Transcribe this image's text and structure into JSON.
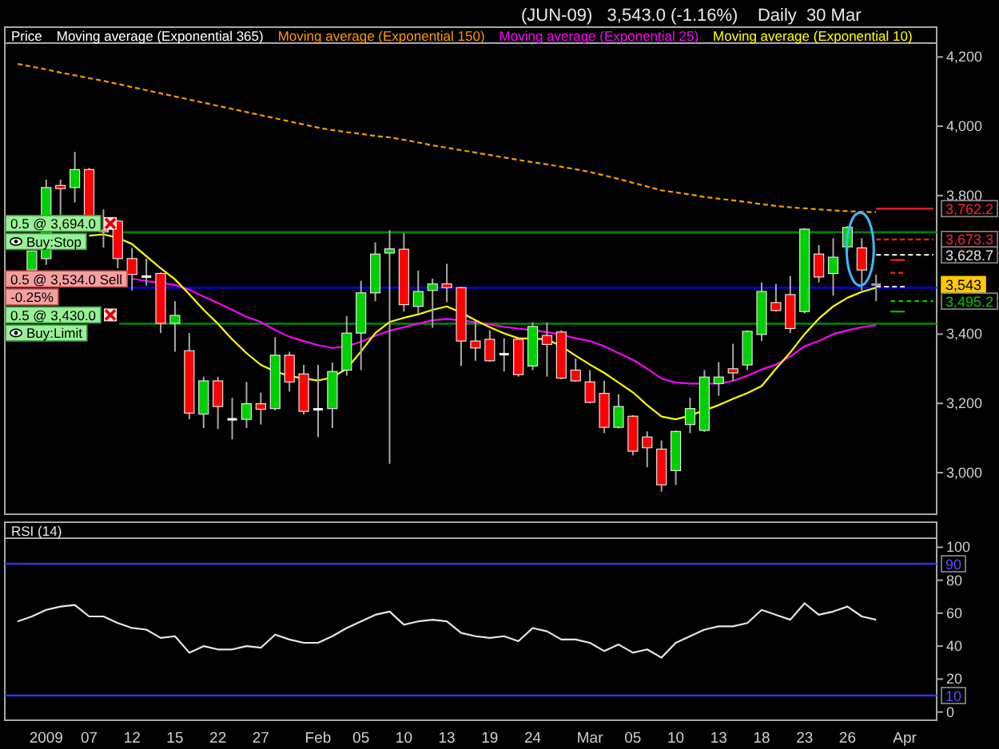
{
  "chart_data": [
    {
      "type": "candlestick",
      "title": "(JUN-09)   3,543.0 (-1.16%)    Daily  30 Mar",
      "legend": "top left",
      "categories": [
        null,
        null,
        null,
        null,
        null,
        null,
        null,
        null,
        null,
        null,
        null,
        null,
        null,
        null,
        null,
        null,
        null,
        null,
        null,
        null,
        null,
        null,
        null,
        null,
        null,
        null,
        null,
        null,
        null,
        null,
        null,
        null,
        null,
        null,
        null,
        null,
        null,
        null,
        null,
        null,
        null,
        null,
        null,
        null,
        null,
        null,
        null,
        null,
        null,
        null,
        null,
        null,
        null,
        null,
        null,
        null,
        null,
        null,
        null,
        null,
        null,
        null,
        null,
        null,
        null
      ],
      "ylim": [
        2880,
        4240
      ],
      "yticks": [
        {
          "value": 3000,
          "label": "3,000"
        },
        {
          "value": 3200,
          "label": "3,200"
        },
        {
          "value": 3400,
          "label": "3,400"
        },
        {
          "value": 3800,
          "label": "3,800"
        },
        {
          "value": 4000,
          "label": "4,000"
        },
        {
          "value": 4200,
          "label": "4,200"
        }
      ],
      "series": [
        {
          "type": "candlestick",
          "name": "Price",
          "ohlc": [
            null,
            [
              3585,
              3640,
              3585,
              3640
            ],
            [
              3618,
              3846,
              3600,
              3823
            ],
            [
              3829,
              3846,
              3740,
              3820
            ],
            [
              3823,
              3926,
              3780,
              3875
            ],
            [
              3875,
              3880,
              3700,
              3742
            ],
            [
              3700,
              3760,
              3650,
              3695
            ],
            [
              3726,
              3730,
              3590,
              3618
            ],
            [
              3618,
              3649,
              3526,
              3572
            ],
            [
              3566,
              3618,
              3540,
              3566
            ],
            [
              3575,
              3578,
              3403,
              3431
            ],
            [
              3431,
              3495,
              3349,
              3454
            ],
            [
              3352,
              3403,
              3154,
              3172
            ],
            [
              3169,
              3277,
              3129,
              3265
            ],
            [
              3265,
              3277,
              3126,
              3191
            ],
            [
              3154,
              3216,
              3096,
              3154
            ],
            [
              3154,
              3262,
              3129,
              3199
            ],
            [
              3199,
              3231,
              3139,
              3183
            ],
            [
              3185,
              3391,
              3180,
              3339
            ],
            [
              3339,
              3349,
              3234,
              3262
            ],
            [
              3285,
              3311,
              3168,
              3177
            ],
            [
              3183,
              3311,
              3103,
              3183
            ],
            [
              3185,
              3318,
              3129,
              3292
            ],
            [
              3296,
              3452,
              3280,
              3403
            ],
            [
              3403,
              3554,
              3296,
              3519
            ],
            [
              3519,
              3665,
              3495,
              3631
            ],
            [
              3634,
              3700,
              3026,
              3646
            ],
            [
              3645,
              3692,
              3465,
              3485
            ],
            [
              3480,
              3583,
              3457,
              3523
            ],
            [
              3526,
              3560,
              3418,
              3545
            ],
            [
              3545,
              3603,
              3492,
              3534
            ],
            [
              3534,
              3536,
              3308,
              3380
            ],
            [
              3380,
              3437,
              3323,
              3360
            ],
            [
              3385,
              3411,
              3320,
              3323
            ],
            [
              3342,
              3388,
              3292,
              3342
            ],
            [
              3385,
              3388,
              3277,
              3283
            ],
            [
              3308,
              3434,
              3296,
              3422
            ],
            [
              3396,
              3434,
              3277,
              3370
            ],
            [
              3406,
              3411,
              3270,
              3273
            ],
            [
              3296,
              3329,
              3262,
              3265
            ],
            [
              3262,
              3296,
              3200,
              3203
            ],
            [
              3229,
              3265,
              3114,
              3131
            ],
            [
              3131,
              3226,
              3128,
              3191
            ],
            [
              3163,
              3166,
              3050,
              3062
            ],
            [
              3103,
              3119,
              3016,
              3072
            ],
            [
              3068,
              3093,
              2945,
              2965
            ],
            [
              3006,
              3122,
              2965,
              3119
            ],
            [
              3139,
              3216,
              3114,
              3185
            ],
            [
              3122,
              3296,
              3118,
              3276
            ],
            [
              3257,
              3319,
              3222,
              3276
            ],
            [
              3300,
              3372,
              3265,
              3288
            ],
            [
              3311,
              3411,
              3296,
              3408
            ],
            [
              3399,
              3549,
              3380,
              3523
            ],
            [
              3491,
              3545,
              3465,
              3468
            ],
            [
              3514,
              3568,
              3403,
              3416
            ],
            [
              3465,
              3706,
              3460,
              3703
            ],
            [
              3631,
              3657,
              3549,
              3565
            ],
            [
              3575,
              3677,
              3511,
              3622
            ],
            [
              3652,
              3712,
              3642,
              3708
            ],
            [
              3649,
              3677,
              3526,
              3585
            ],
            [
              3543,
              3572,
              3495,
              3543
            ],
            null,
            null,
            null,
            null
          ],
          "colors": [
            null,
            "#00d000",
            "#00d000",
            "#ff0000",
            "#00d000",
            "#ff0000",
            "#ff0000",
            "#ff0000",
            "#ff0000",
            "#ffffff",
            "#ff0000",
            "#00d000",
            "#ff0000",
            "#00d000",
            "#ff0000",
            "#ffffff",
            "#00d000",
            "#ff0000",
            "#00d000",
            "#ff0000",
            "#ff0000",
            "#ffffff",
            "#00d000",
            "#00d000",
            "#00d000",
            "#00d000",
            "#00d000",
            "#ff0000",
            "#00d000",
            "#00d000",
            "#ff0000",
            "#ff0000",
            "#ff0000",
            "#ff0000",
            "#ffffff",
            "#ff0000",
            "#00d000",
            "#ff0000",
            "#ff0000",
            "#ff0000",
            "#ff0000",
            "#ff0000",
            "#00d000",
            "#ff0000",
            "#ff0000",
            "#ff0000",
            "#00d000",
            "#00d000",
            "#00d000",
            "#00d000",
            "#ff0000",
            "#00d000",
            "#00d000",
            "#ff0000",
            "#ff0000",
            "#00d000",
            "#ff0000",
            "#00d000",
            "#00d000",
            "#ff0000",
            "#a0a0a0",
            null,
            null,
            null,
            null
          ],
          "value_labels": [
            null,
            null,
            null,
            null,
            null,
            null,
            null,
            null,
            null,
            null,
            null,
            null,
            null,
            null,
            null,
            null,
            null,
            null,
            null,
            null,
            null,
            null,
            null,
            null,
            null,
            null,
            null,
            null,
            null,
            null,
            null,
            null,
            null,
            null,
            null,
            null,
            null,
            null,
            null,
            null,
            null,
            null,
            null,
            null,
            null,
            null,
            null,
            null,
            null,
            null,
            null,
            null,
            null,
            null,
            null,
            null,
            null,
            null,
            null,
            null,
            "3,543",
            null,
            null,
            null,
            null
          ]
        },
        {
          "type": "line",
          "name": "Moving average (Exponential 365)",
          "color": "#ffffff",
          "values": [
            null,
            null,
            null,
            null,
            null,
            null,
            null,
            null,
            null,
            null,
            null,
            null,
            null,
            null,
            null,
            null,
            null,
            null,
            null,
            null,
            null,
            null,
            null,
            null,
            null,
            null,
            null,
            null,
            null,
            null,
            null,
            null,
            null,
            null,
            null,
            null,
            null,
            null,
            null,
            null,
            null,
            null,
            null,
            null,
            null,
            null,
            null,
            null,
            null,
            null,
            null,
            null,
            null,
            null,
            null,
            null,
            null,
            null,
            null,
            null,
            null,
            null,
            null,
            null,
            null
          ]
        },
        {
          "type": "line",
          "name": "Moving average (Exponential 150)",
          "color": "#ff9900",
          "line_style": "dashed",
          "values": [
            4180,
            4172,
            4164,
            4155,
            4147,
            4139,
            4131,
            4122,
            4113,
            4104,
            4095,
            4086,
            4077,
            4068,
            4059,
            4050,
            4041,
            4032,
            4023,
            4014,
            4005,
            3996,
            3989,
            3983,
            3978,
            3972,
            3968,
            3961,
            3953,
            3945,
            3938,
            3931,
            3924,
            3917,
            3910,
            3903,
            3896,
            3890,
            3883,
            3876,
            3868,
            3858,
            3848,
            3837,
            3826,
            3815,
            3809,
            3803,
            3796,
            3791,
            3786,
            3781,
            3775,
            3770,
            3766,
            3763,
            3760,
            3757,
            3755,
            3753,
            3752,
            null,
            null,
            null,
            null
          ]
        },
        {
          "type": "line",
          "name": "Moving average (Exponential 25)",
          "color": "#ff00ff",
          "values": [
            null,
            null,
            null,
            null,
            null,
            null,
            null,
            null,
            3560,
            3553,
            3548,
            3542,
            3528,
            3508,
            3490,
            3470,
            3450,
            3435,
            3412,
            3392,
            3380,
            3368,
            3360,
            3365,
            3378,
            3395,
            3410,
            3420,
            3430,
            3440,
            3444,
            3440,
            3434,
            3428,
            3421,
            3416,
            3411,
            3406,
            3398,
            3388,
            3380,
            3365,
            3345,
            3326,
            3300,
            3272,
            3260,
            3257,
            3257,
            3257,
            3265,
            3280,
            3298,
            3312,
            3335,
            3365,
            3380,
            3400,
            3411,
            3420,
            3426,
            null,
            null,
            null,
            null
          ]
        },
        {
          "type": "line",
          "name": "Moving average (Exponential 10)",
          "color": "#ffff00",
          "values": [
            null,
            null,
            null,
            null,
            null,
            3684,
            3688,
            3678,
            3660,
            3625,
            3590,
            3558,
            3515,
            3470,
            3430,
            3385,
            3345,
            3311,
            3292,
            3279,
            3272,
            3266,
            3275,
            3300,
            3350,
            3403,
            3435,
            3447,
            3457,
            3470,
            3480,
            3462,
            3440,
            3420,
            3402,
            3388,
            3387,
            3385,
            3365,
            3338,
            3312,
            3288,
            3260,
            3232,
            3195,
            3162,
            3154,
            3165,
            3180,
            3195,
            3213,
            3230,
            3250,
            3300,
            3347,
            3400,
            3445,
            3480,
            3505,
            3522,
            3534,
            null,
            null,
            null,
            null
          ]
        },
        {
          "type": "line",
          "color": "#ff2020",
          "line_style": "solid",
          "values": [
            null,
            null,
            null,
            null,
            null,
            null,
            null,
            null,
            null,
            null,
            null,
            null,
            null,
            null,
            null,
            null,
            null,
            null,
            null,
            null,
            null,
            null,
            null,
            null,
            null,
            null,
            null,
            null,
            null,
            null,
            null,
            null,
            null,
            null,
            null,
            null,
            null,
            null,
            null,
            null,
            null,
            null,
            null,
            null,
            null,
            null,
            null,
            null,
            null,
            null,
            null,
            null,
            null,
            null,
            null,
            null,
            null,
            null,
            null,
            null,
            3762.2,
            3762.2,
            3762.2,
            3762.2,
            3762.2
          ],
          "value_labels": [
            null,
            null,
            null,
            null,
            null,
            null,
            null,
            null,
            null,
            null,
            null,
            null,
            null,
            null,
            null,
            null,
            null,
            null,
            null,
            null,
            null,
            null,
            null,
            null,
            null,
            null,
            null,
            null,
            null,
            null,
            null,
            null,
            null,
            null,
            null,
            null,
            null,
            null,
            null,
            null,
            null,
            null,
            null,
            null,
            null,
            null,
            null,
            null,
            null,
            null,
            null,
            null,
            null,
            null,
            null,
            null,
            null,
            null,
            null,
            null,
            null,
            null,
            null,
            null,
            "3,762.2"
          ]
        },
        {
          "type": "line",
          "color": "#ff2020",
          "line_style": "dashed",
          "values": [
            null,
            null,
            null,
            null,
            null,
            null,
            null,
            null,
            null,
            null,
            null,
            null,
            null,
            null,
            null,
            null,
            null,
            null,
            null,
            null,
            null,
            null,
            null,
            null,
            null,
            null,
            null,
            null,
            null,
            null,
            null,
            null,
            null,
            null,
            null,
            null,
            null,
            null,
            null,
            null,
            null,
            null,
            null,
            null,
            null,
            null,
            null,
            null,
            null,
            null,
            null,
            null,
            null,
            null,
            null,
            null,
            null,
            null,
            null,
            null,
            3673.3,
            3673.3,
            3673.3,
            3673.3,
            3673.3
          ],
          "value_labels": [
            null,
            null,
            null,
            null,
            null,
            null,
            null,
            null,
            null,
            null,
            null,
            null,
            null,
            null,
            null,
            null,
            null,
            null,
            null,
            null,
            null,
            null,
            null,
            null,
            null,
            null,
            null,
            null,
            null,
            null,
            null,
            null,
            null,
            null,
            null,
            null,
            null,
            null,
            null,
            null,
            null,
            null,
            null,
            null,
            null,
            null,
            null,
            null,
            null,
            null,
            null,
            null,
            null,
            null,
            null,
            null,
            null,
            null,
            null,
            null,
            null,
            null,
            null,
            null,
            "3,673.3"
          ]
        },
        {
          "type": "line",
          "color": "#e0e0e0",
          "line_style": "dashed",
          "values": [
            null,
            null,
            null,
            null,
            null,
            null,
            null,
            null,
            null,
            null,
            null,
            null,
            null,
            null,
            null,
            null,
            null,
            null,
            null,
            null,
            null,
            null,
            null,
            null,
            null,
            null,
            null,
            null,
            null,
            null,
            null,
            null,
            null,
            null,
            null,
            null,
            null,
            null,
            null,
            null,
            null,
            null,
            null,
            null,
            null,
            null,
            null,
            null,
            null,
            null,
            null,
            null,
            null,
            null,
            null,
            null,
            null,
            null,
            null,
            null,
            3628.7,
            3628.7,
            3628.7,
            3628.7,
            3628.7
          ],
          "value_labels": [
            null,
            null,
            null,
            null,
            null,
            null,
            null,
            null,
            null,
            null,
            null,
            null,
            null,
            null,
            null,
            null,
            null,
            null,
            null,
            null,
            null,
            null,
            null,
            null,
            null,
            null,
            null,
            null,
            null,
            null,
            null,
            null,
            null,
            null,
            null,
            null,
            null,
            null,
            null,
            null,
            null,
            null,
            null,
            null,
            null,
            null,
            null,
            null,
            null,
            null,
            null,
            null,
            null,
            null,
            null,
            null,
            null,
            null,
            null,
            null,
            null,
            null,
            null,
            null,
            "3,628.7"
          ]
        },
        {
          "type": "line",
          "color": "#ff2020",
          "line_style": "solid",
          "values": [
            null,
            null,
            null,
            null,
            null,
            null,
            null,
            null,
            null,
            null,
            null,
            null,
            null,
            null,
            null,
            null,
            null,
            null,
            null,
            null,
            null,
            null,
            null,
            null,
            null,
            null,
            null,
            null,
            null,
            null,
            null,
            null,
            null,
            null,
            null,
            null,
            null,
            null,
            null,
            null,
            null,
            null,
            null,
            null,
            null,
            null,
            null,
            null,
            null,
            null,
            null,
            null,
            null,
            null,
            null,
            null,
            null,
            null,
            null,
            null,
            null,
            3614,
            3614,
            null,
            null
          ]
        },
        {
          "type": "line",
          "color": "#ff2020",
          "line_style": "dashed",
          "values": [
            null,
            null,
            null,
            null,
            null,
            null,
            null,
            null,
            null,
            null,
            null,
            null,
            null,
            null,
            null,
            null,
            null,
            null,
            null,
            null,
            null,
            null,
            null,
            null,
            null,
            null,
            null,
            null,
            null,
            null,
            null,
            null,
            null,
            null,
            null,
            null,
            null,
            null,
            null,
            null,
            null,
            null,
            null,
            null,
            null,
            null,
            null,
            null,
            null,
            null,
            null,
            null,
            null,
            null,
            null,
            null,
            null,
            null,
            null,
            null,
            null,
            3577,
            3577,
            null,
            null
          ]
        },
        {
          "type": "line",
          "color": "#e0e0e0",
          "line_style": "dashed",
          "values": [
            null,
            null,
            null,
            null,
            null,
            null,
            null,
            null,
            null,
            null,
            null,
            null,
            null,
            null,
            null,
            null,
            null,
            null,
            null,
            null,
            null,
            null,
            null,
            null,
            null,
            null,
            null,
            null,
            null,
            null,
            null,
            null,
            null,
            null,
            null,
            null,
            null,
            null,
            null,
            null,
            null,
            null,
            null,
            null,
            null,
            null,
            null,
            null,
            null,
            null,
            null,
            null,
            null,
            null,
            null,
            null,
            null,
            null,
            null,
            null,
            3537,
            3537,
            3537,
            null,
            null
          ]
        },
        {
          "type": "line",
          "color": "#00c000",
          "line_style": "dashed",
          "values": [
            null,
            null,
            null,
            null,
            null,
            null,
            null,
            null,
            null,
            null,
            null,
            null,
            null,
            null,
            null,
            null,
            null,
            null,
            null,
            null,
            null,
            null,
            null,
            null,
            null,
            null,
            null,
            null,
            null,
            null,
            null,
            null,
            null,
            null,
            null,
            null,
            null,
            null,
            null,
            null,
            null,
            null,
            null,
            null,
            null,
            null,
            null,
            null,
            null,
            null,
            null,
            null,
            null,
            null,
            null,
            null,
            null,
            null,
            null,
            null,
            null,
            3495.2,
            3495.2,
            3495.2,
            3495.2
          ],
          "value_labels": [
            null,
            null,
            null,
            null,
            null,
            null,
            null,
            null,
            null,
            null,
            null,
            null,
            null,
            null,
            null,
            null,
            null,
            null,
            null,
            null,
            null,
            null,
            null,
            null,
            null,
            null,
            null,
            null,
            null,
            null,
            null,
            null,
            null,
            null,
            null,
            null,
            null,
            null,
            null,
            null,
            null,
            null,
            null,
            null,
            null,
            null,
            null,
            null,
            null,
            null,
            null,
            null,
            null,
            null,
            null,
            null,
            null,
            null,
            null,
            null,
            null,
            null,
            null,
            null,
            "3,495.2"
          ]
        },
        {
          "type": "line",
          "color": "#00c000",
          "line_style": "solid",
          "values": [
            null,
            null,
            null,
            null,
            null,
            null,
            null,
            null,
            null,
            null,
            null,
            null,
            null,
            null,
            null,
            null,
            null,
            null,
            null,
            null,
            null,
            null,
            null,
            null,
            null,
            null,
            null,
            null,
            null,
            null,
            null,
            null,
            null,
            null,
            null,
            null,
            null,
            null,
            null,
            null,
            null,
            null,
            null,
            null,
            null,
            null,
            null,
            null,
            null,
            null,
            null,
            null,
            null,
            null,
            null,
            null,
            null,
            null,
            null,
            null,
            null,
            3465,
            3465,
            null,
            null
          ]
        }
      ],
      "ref_lines": [
        {
          "axis": "y",
          "value": 3694,
          "label": "0.5 @ 3,694.0",
          "color": "#008000"
        },
        {
          "axis": "y",
          "value": 3534,
          "label": "0.5 @ 3,534.0 Sell",
          "color": "#0000ff"
        },
        {
          "axis": "y",
          "value": 3430,
          "label": "0.5 @ 3,430.0",
          "color": "#008000"
        }
      ],
      "annotations": [
        "Buy:Stop",
        "-0.25%",
        "Buy:Limit"
      ]
    },
    {
      "type": "line",
      "title": "RSI (14)",
      "color": "#e6e6e6",
      "categories": [
        null,
        null,
        "2009",
        null,
        null,
        "07",
        null,
        null,
        "12",
        null,
        null,
        "15",
        null,
        null,
        "22",
        null,
        null,
        "27",
        null,
        null,
        null,
        "Feb",
        null,
        null,
        "05",
        null,
        null,
        "10",
        null,
        null,
        "13",
        null,
        null,
        "19",
        null,
        null,
        "24",
        null,
        null,
        null,
        "Mar",
        null,
        null,
        "05",
        null,
        null,
        "10",
        null,
        null,
        "13",
        null,
        null,
        "18",
        null,
        null,
        "23",
        null,
        null,
        "26",
        null,
        null,
        null,
        "Apr",
        null,
        null
      ],
      "ylim": [
        -5,
        105.5
      ],
      "yticks": [
        0,
        20,
        40,
        60,
        80,
        100
      ],
      "values": [
        55,
        58,
        62,
        64,
        65,
        58,
        58,
        54,
        51,
        50,
        45,
        46,
        36,
        40,
        38,
        38,
        40,
        39,
        47,
        44,
        42,
        42,
        46,
        51,
        55,
        59,
        61,
        53,
        55,
        56,
        55,
        48,
        46,
        45,
        46,
        43,
        51,
        49,
        44,
        44,
        42,
        37,
        41,
        36,
        38,
        33,
        42,
        46,
        50,
        52,
        52,
        54,
        62,
        59,
        56,
        66,
        59,
        61,
        64,
        58,
        56,
        null,
        null,
        null,
        null
      ],
      "ref_lines": [
        {
          "axis": "y",
          "value": 90,
          "label": "90",
          "color": "#3030e0"
        },
        {
          "axis": "y",
          "value": 10,
          "label": "10",
          "color": "#3030e0"
        }
      ]
    }
  ]
}
